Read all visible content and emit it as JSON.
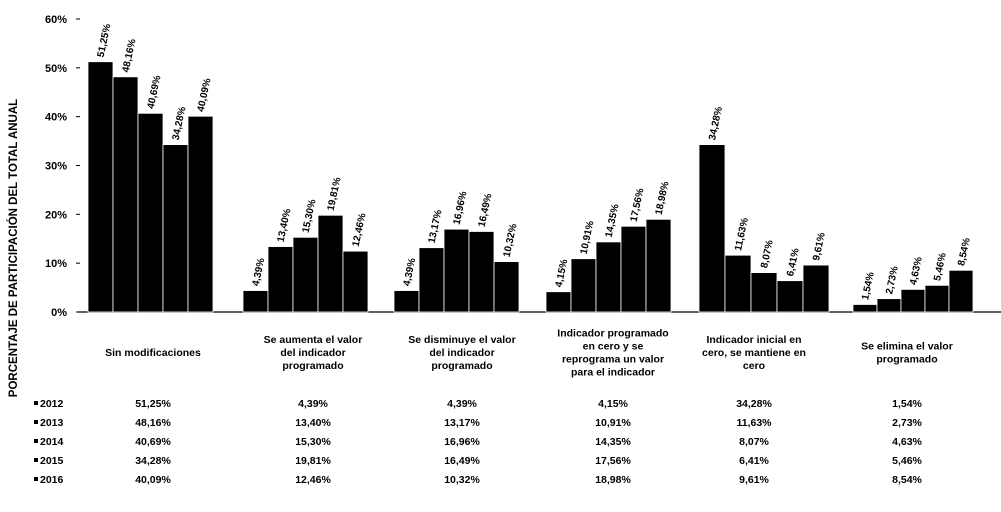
{
  "chart_data": {
    "type": "bar",
    "ylabel": "PORCENTAJE DE PARTICIPACIÓN DEL TOTAL ANUAL",
    "ylim": [
      0,
      60
    ],
    "yticks": [
      "0%",
      "10%",
      "20%",
      "30%",
      "40%",
      "50%",
      "60%"
    ],
    "categories": [
      "Sin modificaciones",
      "Se aumenta el valor del indicador programado",
      "Se disminuye el valor del indicador programado",
      "Indicador programado en cero y se reprograma un valor para el indicador",
      "Indicador inicial en cero, se mantiene en cero",
      "Se elimina el valor programado"
    ],
    "series": [
      {
        "name": "2012",
        "values": [
          51.25,
          4.39,
          4.39,
          4.15,
          34.28,
          1.54
        ],
        "labels": [
          "51,25%",
          "4,39%",
          "4,39%",
          "4,15%",
          "34,28%",
          "1,54%"
        ]
      },
      {
        "name": "2013",
        "values": [
          48.16,
          13.4,
          13.17,
          10.91,
          11.63,
          2.73
        ],
        "labels": [
          "48,16%",
          "13,40%",
          "13,17%",
          "10,91%",
          "11,63%",
          "2,73%"
        ]
      },
      {
        "name": "2014",
        "values": [
          40.69,
          15.3,
          16.96,
          14.35,
          8.07,
          4.63
        ],
        "labels": [
          "40,69%",
          "15,30%",
          "16,96%",
          "14,35%",
          "8,07%",
          "4,63%"
        ]
      },
      {
        "name": "2015",
        "values": [
          34.28,
          19.81,
          16.49,
          17.56,
          6.41,
          5.46
        ],
        "labels": [
          "34,28%",
          "19,81%",
          "16,49%",
          "17,56%",
          "6,41%",
          "5,46%"
        ]
      },
      {
        "name": "2016",
        "values": [
          40.09,
          12.46,
          10.32,
          18.98,
          9.61,
          8.54
        ],
        "labels": [
          "40,09%",
          "12,46%",
          "10,32%",
          "18,98%",
          "9,61%",
          "8,54%"
        ]
      }
    ],
    "bar_color": "#000000",
    "legend_placement": "data-table-below",
    "grid": false
  }
}
